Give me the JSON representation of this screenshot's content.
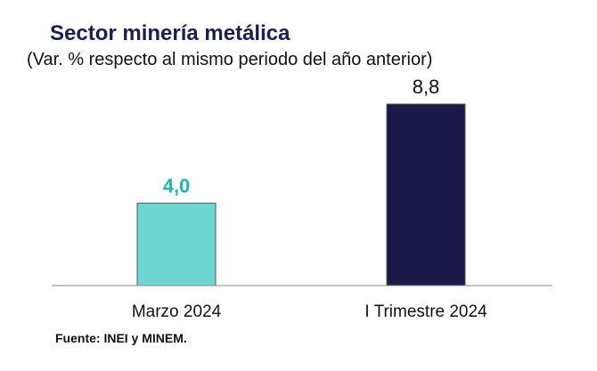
{
  "chart_data": {
    "type": "bar",
    "title": "Sector minería metálica",
    "subtitle": "(Var. % respecto al mismo periodo del año anterior)",
    "categories": [
      "Marzo 2024",
      "I Trimestre 2024"
    ],
    "values": [
      4.0,
      8.8
    ],
    "value_labels": [
      "4,0",
      "8,8"
    ],
    "bar_colors": [
      "#6dd6d2",
      "#1a1a48"
    ],
    "label_colors": [
      "#1fb5b0",
      "#111111"
    ],
    "ylim": [
      0,
      8.8
    ],
    "grid": false,
    "legend": "none"
  },
  "source": "Fuente: INEI y MINEM."
}
